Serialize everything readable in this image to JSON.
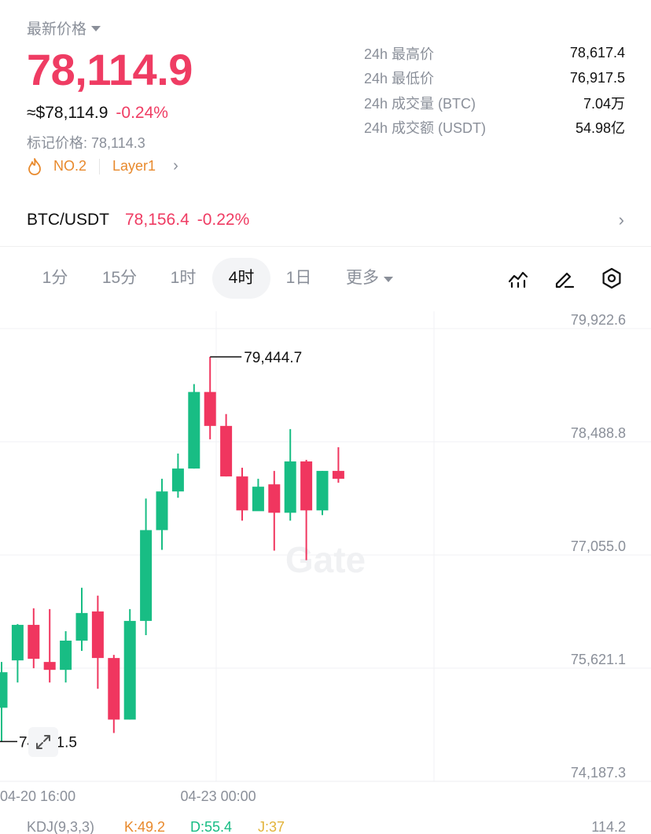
{
  "header": {
    "latest_label": "最新价格",
    "price": "78,114.9",
    "usd_price": "≈$78,114.9",
    "change": "-0.24%",
    "mark_price": "标记价格: 78,114.3",
    "tag_rank": "NO.2",
    "tag_category": "Layer1"
  },
  "stats": [
    {
      "label": "24h 最高价",
      "value": "78,617.4"
    },
    {
      "label": "24h 最低价",
      "value": "76,917.5"
    },
    {
      "label": "24h 成交量 (BTC)",
      "value": "7.04万"
    },
    {
      "label": "24h 成交额 (USDT)",
      "value": "54.98亿"
    }
  ],
  "pair": {
    "name": "BTC/USDT",
    "price": "78,156.4",
    "change": "-0.22%"
  },
  "timeframes": [
    {
      "label": "1分",
      "active": false
    },
    {
      "label": "15分",
      "active": false
    },
    {
      "label": "1时",
      "active": false
    },
    {
      "label": "4时",
      "active": true
    },
    {
      "label": "1日",
      "active": false
    }
  ],
  "more_label": "更多",
  "tools": [
    "indicator-icon",
    "draw-icon",
    "settings-icon"
  ],
  "colors": {
    "up": "#18bd84",
    "down": "#f0365f",
    "accent": "#ef3c63",
    "muted": "#8a8f99",
    "tag": "#e8892c"
  },
  "chart_data": {
    "type": "candlestick",
    "y_ticks": [
      "79,922.6",
      "78,488.8",
      "77,055.0",
      "75,621.1",
      "74,187.3"
    ],
    "ylim": [
      74187.3,
      79922.6
    ],
    "x_ticks": [
      {
        "label": "04-20 16:00",
        "index": 0
      },
      {
        "label": "04-23 00:00",
        "index": 14
      }
    ],
    "watermark": "Gate",
    "high_annotation": {
      "label": "79,444.7",
      "value": 79444.7,
      "index": 13
    },
    "low_annotation": {
      "label": "74,571.5",
      "value": 74571.5,
      "index": 0
    },
    "candles": [
      {
        "o": 75000,
        "h": 75580,
        "c": 75450,
        "l": 74571.5
      },
      {
        "o": 75600,
        "h": 76060,
        "c": 76050,
        "l": 75320
      },
      {
        "o": 76050,
        "h": 76260,
        "c": 75620,
        "l": 75500
      },
      {
        "o": 75580,
        "h": 76250,
        "c": 75480,
        "l": 75320
      },
      {
        "o": 75480,
        "h": 75970,
        "c": 75850,
        "l": 75320
      },
      {
        "o": 75850,
        "h": 76520,
        "c": 76200,
        "l": 75720
      },
      {
        "o": 76220,
        "h": 76420,
        "c": 75630,
        "l": 75240
      },
      {
        "o": 75630,
        "h": 75670,
        "c": 74850,
        "l": 74680
      },
      {
        "o": 74850,
        "h": 76250,
        "c": 76100,
        "l": 74850
      },
      {
        "o": 76100,
        "h": 77650,
        "c": 77250,
        "l": 75920
      },
      {
        "o": 77250,
        "h": 77900,
        "c": 77740,
        "l": 77000
      },
      {
        "o": 77740,
        "h": 78220,
        "c": 78030,
        "l": 77660
      },
      {
        "o": 78030,
        "h": 79100,
        "c": 79000,
        "l": 78030
      },
      {
        "o": 79000,
        "h": 79444.7,
        "c": 78570,
        "l": 78400
      },
      {
        "o": 78570,
        "h": 78720,
        "c": 77930,
        "l": 77930
      },
      {
        "o": 77930,
        "h": 78040,
        "c": 77500,
        "l": 77370
      },
      {
        "o": 77490,
        "h": 77900,
        "c": 77800,
        "l": 77500
      },
      {
        "o": 77830,
        "h": 78000,
        "c": 77470,
        "l": 76990
      },
      {
        "o": 77470,
        "h": 78530,
        "c": 78120,
        "l": 77370
      },
      {
        "o": 78120,
        "h": 78140,
        "c": 77500,
        "l": 76870
      },
      {
        "o": 77500,
        "h": 78000,
        "c": 78000,
        "l": 77440
      },
      {
        "o": 78000,
        "h": 78300,
        "c": 77900,
        "l": 77850
      }
    ]
  },
  "kdj": {
    "label": "KDJ(9,3,3)",
    "k": "K:49.2",
    "d": "D:55.4",
    "j": "J:37",
    "axis_value": "114.2"
  }
}
